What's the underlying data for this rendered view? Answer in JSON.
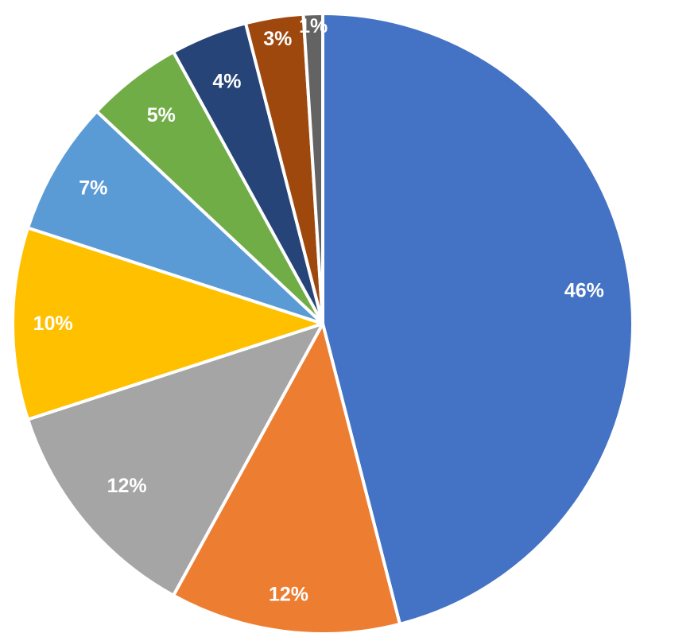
{
  "chart_data": {
    "type": "pie",
    "start_angle_deg": 0,
    "direction": "clockwise",
    "slices": [
      {
        "value": 46,
        "label": "46%",
        "color": "#4472C4"
      },
      {
        "value": 12,
        "label": "12%",
        "color": "#ED7D31"
      },
      {
        "value": 12,
        "label": "12%",
        "color": "#A5A5A5"
      },
      {
        "value": 10,
        "label": "10%",
        "color": "#FFC000"
      },
      {
        "value": 7,
        "label": "7%",
        "color": "#5B9BD5"
      },
      {
        "value": 5,
        "label": "5%",
        "color": "#70AD47"
      },
      {
        "value": 4,
        "label": "4%",
        "color": "#264478"
      },
      {
        "value": 3,
        "label": "3%",
        "color": "#9E480E"
      },
      {
        "value": 1,
        "label": "1%",
        "color": "#636363"
      }
    ]
  }
}
